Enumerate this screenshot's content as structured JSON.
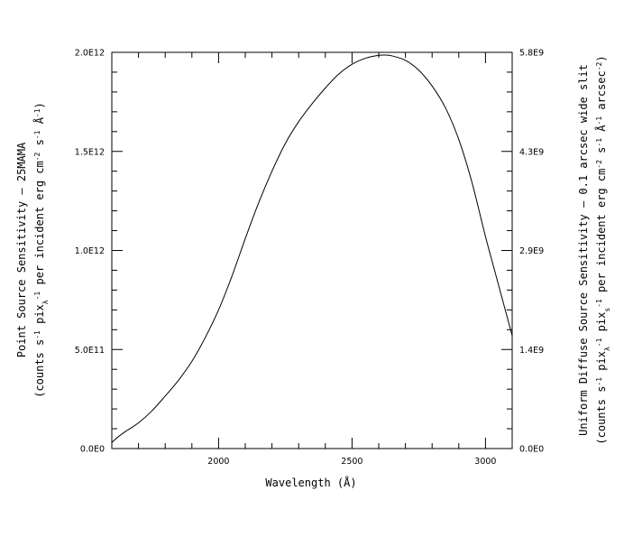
{
  "chart_data": {
    "type": "line",
    "title": "",
    "xlabel": "Wavelength (Å)",
    "ylabel": {
      "line1": "Point Source Sensitivity  –  25MAMA",
      "line2_parts": [
        "(counts s",
        "-1",
        "  pix",
        "λ",
        "-1",
        "  per incident erg cm",
        "-2",
        " s",
        "-1",
        " Å",
        "-1",
        ")"
      ]
    },
    "y2label": {
      "line1": "Uniform Diffuse Source Sensitivity  –  0.1 arcsec wide slit",
      "line2_parts": [
        "(counts s",
        "-1",
        "  pix",
        "λ",
        "-1",
        "  pix",
        "s",
        "-1",
        "  per incident erg cm",
        "-2",
        " s",
        "-1",
        " Å",
        "-1",
        " arcsec",
        "-2",
        ")"
      ]
    },
    "xlim": [
      1600,
      3100
    ],
    "ylim": [
      0,
      2000000000000.0
    ],
    "y2lim": [
      0,
      5800000000.0
    ],
    "x_ticks": [
      {
        "value": 2000,
        "label": "2000"
      },
      {
        "value": 2500,
        "label": "2500"
      },
      {
        "value": 3000,
        "label": "3000"
      }
    ],
    "y_ticks": [
      {
        "value": 0,
        "label": "0.0E0"
      },
      {
        "value": 500000000000.0,
        "label": "5.0E11"
      },
      {
        "value": 1000000000000.0,
        "label": "1.0E12"
      },
      {
        "value": 1500000000000.0,
        "label": "1.5E12"
      },
      {
        "value": 2000000000000.0,
        "label": "2.0E12"
      }
    ],
    "y2_ticks": [
      {
        "value": 0,
        "label": "0.0E0"
      },
      {
        "value": 1450000000.0,
        "label": "1.4E9"
      },
      {
        "value": 2900000000.0,
        "label": "2.9E9"
      },
      {
        "value": 4350000000.0,
        "label": "4.3E9"
      },
      {
        "value": 5800000000.0,
        "label": "5.8E9"
      }
    ],
    "x_minor_step": 100,
    "y_minor_step": 100000000000.0,
    "grid": false,
    "series": [
      {
        "x": [
          1600,
          1620,
          1650,
          1700,
          1750,
          1800,
          1850,
          1900,
          1950,
          2000,
          2050,
          2100,
          2150,
          2200,
          2250,
          2300,
          2350,
          2400,
          2450,
          2500,
          2550,
          2600,
          2630,
          2650,
          2700,
          2750,
          2800,
          2850,
          2900,
          2950,
          3000,
          3050,
          3100
        ],
        "y": [
          30000000000.0,
          55000000000.0,
          85000000000.0,
          130000000000.0,
          190000000000.0,
          265000000000.0,
          345000000000.0,
          440000000000.0,
          560000000000.0,
          700000000000.0,
          870000000000.0,
          1060000000000.0,
          1240000000000.0,
          1400000000000.0,
          1540000000000.0,
          1650000000000.0,
          1740000000000.0,
          1820000000000.0,
          1890000000000.0,
          1940000000000.0,
          1970000000000.0,
          1985000000000.0,
          1986000000000.0,
          1982000000000.0,
          1960000000000.0,
          1910000000000.0,
          1830000000000.0,
          1720000000000.0,
          1560000000000.0,
          1340000000000.0,
          1070000000000.0,
          820000000000.0,
          570000000000.0
        ]
      }
    ]
  }
}
